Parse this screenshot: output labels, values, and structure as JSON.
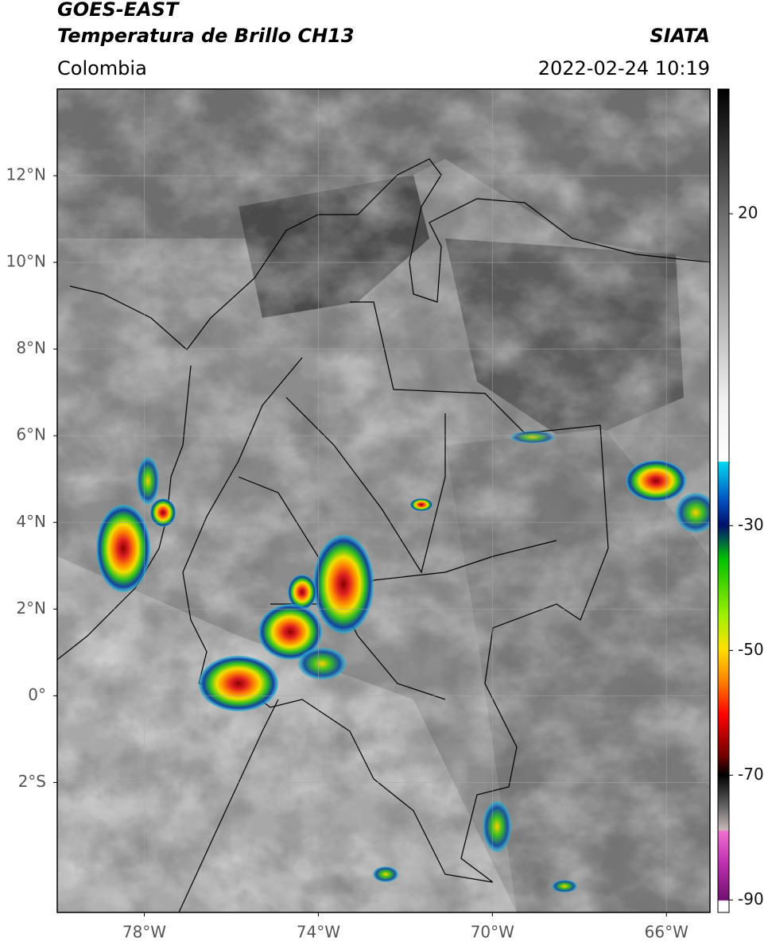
{
  "header": {
    "satellite": "GOES-EAST",
    "product": "Temperatura de Brillo CH13",
    "source": "SIATA",
    "region": "Colombia",
    "datetime": "2022-02-24 10:19"
  },
  "map": {
    "xlim": [
      -80,
      -65
    ],
    "ylim": [
      -5,
      14
    ],
    "xticks": [
      {
        "value": -78,
        "label": "78°W"
      },
      {
        "value": -74,
        "label": "74°W"
      },
      {
        "value": -70,
        "label": "70°W"
      },
      {
        "value": -66,
        "label": "66°W"
      }
    ],
    "yticks": [
      {
        "value": 12,
        "label": "12°N"
      },
      {
        "value": 10,
        "label": "10°N"
      },
      {
        "value": 8,
        "label": "8°N"
      },
      {
        "value": 6,
        "label": "6°N"
      },
      {
        "value": 4,
        "label": "4°N"
      },
      {
        "value": 2,
        "label": "2°N"
      },
      {
        "value": 0,
        "label": "0°"
      },
      {
        "value": -2,
        "label": "2°S"
      }
    ],
    "grid": true
  },
  "colorbar": {
    "lim": [
      -92,
      40
    ],
    "ticks": [
      20,
      -30,
      -50,
      -70,
      -90
    ]
  }
}
